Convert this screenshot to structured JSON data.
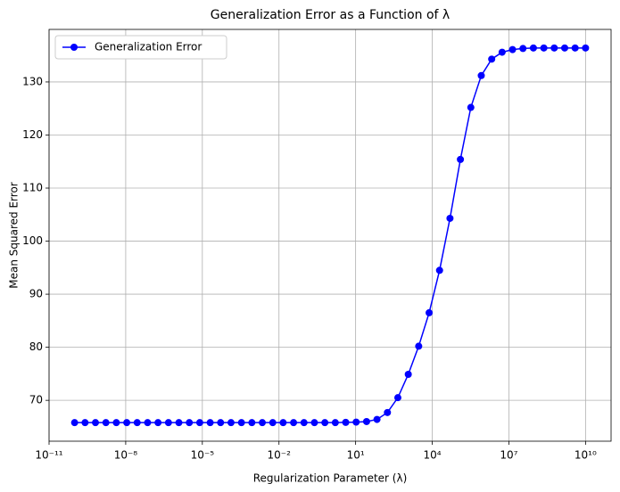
{
  "chart_data": {
    "type": "line",
    "title": "Generalization Error as a Function of λ",
    "xlabel": "Regularization Parameter (λ)",
    "ylabel": "Mean Squared Error",
    "x": [
      1e-10,
      2.56e-10,
      6.551e-10,
      1.677e-09,
      4.292e-09,
      1.099e-08,
      2.812e-08,
      7.197e-08,
      1.842e-07,
      4.715e-07,
      1.207e-06,
      3.089e-06,
      7.906e-06,
      2.024e-05,
      5.179e-05,
      0.0001326,
      0.0003393,
      0.0008685,
      0.002223,
      0.00569,
      0.01456,
      0.03728,
      0.09541,
      0.2442,
      0.6251,
      1.6,
      4.095,
      10.48,
      26.83,
      68.66,
      175.8,
      449.9,
      1151,
      2947,
      7543,
      19307,
      49417,
      126486,
      323746,
      828643,
      2121000.0,
      5429000.0,
      13900000.0,
      35560000.0,
      91030000.0,
      233000000.0,
      596400000.0,
      1526000000.0,
      3907000000.0,
      10000000000.0
    ],
    "series": [
      {
        "name": "Generalization Error",
        "color": "#0000ff",
        "values": [
          65.8,
          65.8,
          65.8,
          65.8,
          65.8,
          65.8,
          65.8,
          65.8,
          65.8,
          65.8,
          65.8,
          65.8,
          65.8,
          65.8,
          65.8,
          65.8,
          65.8,
          65.8,
          65.8,
          65.8,
          65.8,
          65.8,
          65.8,
          65.8,
          65.8,
          65.8,
          65.85,
          65.9,
          66.0,
          66.4,
          67.7,
          70.5,
          74.9,
          80.2,
          86.5,
          94.5,
          104.3,
          115.4,
          125.2,
          131.2,
          134.3,
          135.6,
          136.1,
          136.3,
          136.4,
          136.4,
          136.4,
          136.4,
          136.4,
          136.4
        ]
      }
    ],
    "xscale": "log",
    "xlim": [
      1e-11,
      100000000000.0
    ],
    "xticks": [
      {
        "value": 1e-11,
        "label": "10⁻¹¹"
      },
      {
        "value": 1e-08,
        "label": "10⁻⁸"
      },
      {
        "value": 1e-05,
        "label": "10⁻⁵"
      },
      {
        "value": 0.01,
        "label": "10⁻²"
      },
      {
        "value": 10,
        "label": "10¹"
      },
      {
        "value": 10000.0,
        "label": "10⁴"
      },
      {
        "value": 10000000.0,
        "label": "10⁷"
      },
      {
        "value": 10000000000.0,
        "label": "10¹⁰"
      }
    ],
    "ylim": [
      62.3,
      139.9
    ],
    "yticks": [
      70,
      80,
      90,
      100,
      110,
      120,
      130
    ],
    "grid": true,
    "legend": "upper-left"
  }
}
